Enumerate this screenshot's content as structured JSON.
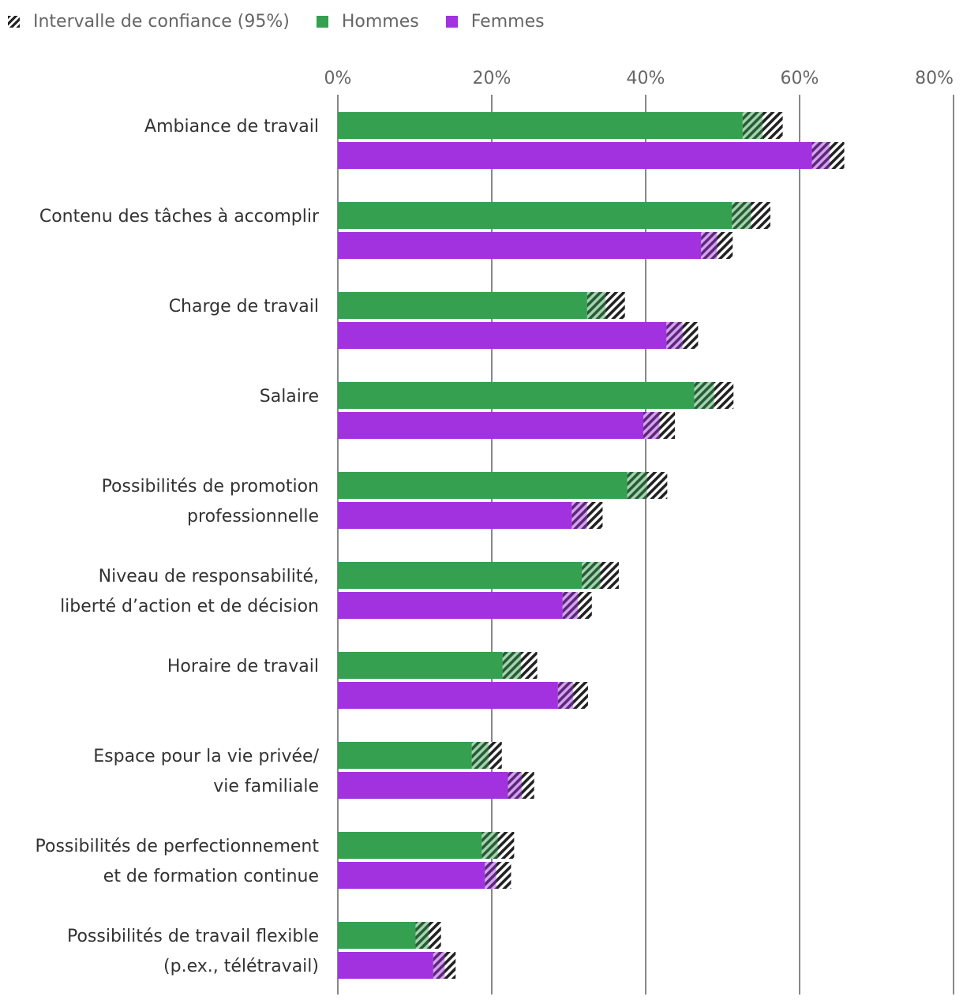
{
  "legend": {
    "ci_label": "Intervalle de confiance (95%)",
    "men_label": "Hommes",
    "women_label": "Femmes"
  },
  "colors": {
    "men": "#34a050",
    "women": "#a232e0",
    "grid": "#888888",
    "hatch": "#222222"
  },
  "chart_data": {
    "type": "bar",
    "orientation": "horizontal",
    "xlim": [
      0,
      80
    ],
    "xticks": [
      0,
      20,
      40,
      60,
      80
    ],
    "tick_suffix": "%",
    "categories": [
      [
        "Ambiance de travail"
      ],
      [
        "Contenu des tâches à accomplir"
      ],
      [
        "Charge de travail"
      ],
      [
        "Salaire"
      ],
      [
        "Possibilités de promotion",
        "professionnelle"
      ],
      [
        "Niveau de responsabilité,",
        "liberté d’action et de décision"
      ],
      [
        "Horaire de travail"
      ],
      [
        "Espace pour la vie privée/",
        "vie familiale"
      ],
      [
        "Possibilités de perfectionnement",
        "et de formation continue"
      ],
      [
        "Possibilités de travail flexible",
        "(p.ex., télétravail)"
      ]
    ],
    "series": [
      {
        "name": "Hommes",
        "values": [
          55.2,
          53.7,
          34.8,
          48.9,
          40.2,
          34.1,
          23.8,
          19.6,
          20.8,
          11.8
        ],
        "ci_low": [
          52.6,
          51.2,
          32.4,
          46.3,
          37.6,
          31.7,
          21.4,
          17.4,
          18.7,
          10.1
        ],
        "ci_high": [
          57.8,
          56.2,
          37.3,
          51.4,
          42.8,
          36.5,
          25.9,
          21.3,
          22.9,
          13.4
        ]
      },
      {
        "name": "Femmes",
        "values": [
          63.9,
          49.3,
          44.8,
          41.8,
          32.4,
          31.2,
          30.6,
          23.9,
          20.6,
          13.9
        ],
        "ci_low": [
          61.6,
          47.2,
          42.7,
          39.7,
          30.4,
          29.2,
          28.6,
          22.1,
          19.1,
          12.4
        ],
        "ci_high": [
          65.8,
          51.3,
          46.8,
          43.8,
          34.4,
          33.0,
          32.5,
          25.5,
          22.5,
          15.3
        ]
      }
    ]
  }
}
